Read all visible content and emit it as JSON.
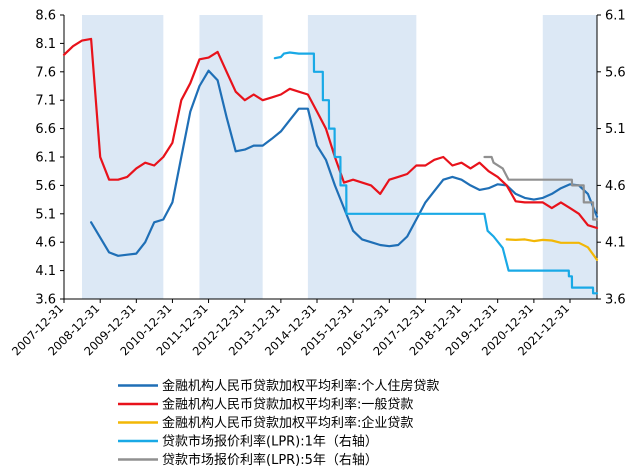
{
  "chart_data": {
    "type": "line",
    "title": "",
    "xlabel": "",
    "ylabel": "",
    "x_range": [
      "2007-12-31",
      "2022-09-30"
    ],
    "left_axis": {
      "min": 3.6,
      "max": 8.6,
      "ticks": [
        "8.6",
        "8.1",
        "7.6",
        "7.1",
        "6.6",
        "6.1",
        "5.6",
        "5.1",
        "4.6",
        "4.1",
        "3.6"
      ]
    },
    "right_axis": {
      "min": 3.6,
      "max": 6.1,
      "ticks": [
        "6.1",
        "5.6",
        "5.1",
        "4.6",
        "4.1",
        "3.6"
      ]
    },
    "x_ticks": [
      "2007-12-31",
      "2008-12-31",
      "2009-12-31",
      "2010-12-31",
      "2011-12-31",
      "2012-12-31",
      "2013-12-31",
      "2014-12-31",
      "2015-12-31",
      "2016-12-31",
      "2017-12-31",
      "2018-12-31",
      "2019-12-31",
      "2020-12-31",
      "2021-12-31"
    ],
    "shaded_periods": [
      [
        "2008-06-30",
        "2010-09-30"
      ],
      [
        "2011-09-30",
        "2013-06-30"
      ],
      [
        "2014-09-30",
        "2017-09-30"
      ],
      [
        "2021-03-31",
        "2022-09-30"
      ]
    ],
    "legend_position": "bottom",
    "series": [
      {
        "name": "金融机构人民币贷款加权平均利率:个人住房贷款",
        "axis": "left",
        "color": "#1f6fb6",
        "points": [
          [
            "2008-09-30",
            4.95
          ],
          [
            "2009-03-31",
            4.42
          ],
          [
            "2009-06-30",
            4.36
          ],
          [
            "2009-09-30",
            4.38
          ],
          [
            "2009-12-31",
            4.4
          ],
          [
            "2010-03-31",
            4.6
          ],
          [
            "2010-06-30",
            4.95
          ],
          [
            "2010-09-30",
            5.0
          ],
          [
            "2010-12-31",
            5.3
          ],
          [
            "2011-03-31",
            6.1
          ],
          [
            "2011-06-30",
            6.9
          ],
          [
            "2011-09-30",
            7.35
          ],
          [
            "2011-12-31",
            7.62
          ],
          [
            "2012-03-31",
            7.45
          ],
          [
            "2012-06-30",
            6.8
          ],
          [
            "2012-09-30",
            6.2
          ],
          [
            "2012-12-31",
            6.23
          ],
          [
            "2013-03-31",
            6.3
          ],
          [
            "2013-06-30",
            6.3
          ],
          [
            "2013-09-30",
            6.42
          ],
          [
            "2013-12-31",
            6.55
          ],
          [
            "2014-03-31",
            6.75
          ],
          [
            "2014-06-30",
            6.95
          ],
          [
            "2014-09-30",
            6.95
          ],
          [
            "2014-12-31",
            6.3
          ],
          [
            "2015-03-31",
            6.05
          ],
          [
            "2015-06-30",
            5.6
          ],
          [
            "2015-09-30",
            5.2
          ],
          [
            "2015-12-31",
            4.8
          ],
          [
            "2016-03-31",
            4.65
          ],
          [
            "2016-06-30",
            4.6
          ],
          [
            "2016-09-30",
            4.55
          ],
          [
            "2016-12-31",
            4.53
          ],
          [
            "2017-03-31",
            4.55
          ],
          [
            "2017-06-30",
            4.7
          ],
          [
            "2017-09-30",
            5.0
          ],
          [
            "2017-12-31",
            5.3
          ],
          [
            "2018-03-31",
            5.5
          ],
          [
            "2018-06-30",
            5.7
          ],
          [
            "2018-09-30",
            5.75
          ],
          [
            "2018-12-31",
            5.7
          ],
          [
            "2019-03-31",
            5.6
          ],
          [
            "2019-06-30",
            5.52
          ],
          [
            "2019-09-30",
            5.55
          ],
          [
            "2019-12-31",
            5.62
          ],
          [
            "2020-03-31",
            5.6
          ],
          [
            "2020-06-30",
            5.45
          ],
          [
            "2020-09-30",
            5.38
          ],
          [
            "2020-12-31",
            5.35
          ],
          [
            "2021-03-31",
            5.38
          ],
          [
            "2021-06-30",
            5.45
          ],
          [
            "2021-09-30",
            5.55
          ],
          [
            "2021-12-31",
            5.62
          ],
          [
            "2022-03-31",
            5.6
          ],
          [
            "2022-06-30",
            5.45
          ],
          [
            "2022-09-30",
            5.05
          ]
        ]
      },
      {
        "name": "金融机构人民币贷款加权平均利率:一般贷款",
        "axis": "left",
        "color": "#e8121b",
        "points": [
          [
            "2007-12-31",
            7.9
          ],
          [
            "2008-03-31",
            8.05
          ],
          [
            "2008-06-30",
            8.15
          ],
          [
            "2008-09-30",
            8.18
          ],
          [
            "2008-12-31",
            6.1
          ],
          [
            "2009-03-31",
            5.7
          ],
          [
            "2009-06-30",
            5.7
          ],
          [
            "2009-09-30",
            5.75
          ],
          [
            "2009-12-31",
            5.9
          ],
          [
            "2010-03-31",
            6.0
          ],
          [
            "2010-06-30",
            5.95
          ],
          [
            "2010-09-30",
            6.1
          ],
          [
            "2010-12-31",
            6.35
          ],
          [
            "2011-03-31",
            7.1
          ],
          [
            "2011-06-30",
            7.4
          ],
          [
            "2011-09-30",
            7.82
          ],
          [
            "2011-12-31",
            7.85
          ],
          [
            "2012-03-31",
            7.95
          ],
          [
            "2012-06-30",
            7.6
          ],
          [
            "2012-09-30",
            7.25
          ],
          [
            "2012-12-31",
            7.1
          ],
          [
            "2013-03-31",
            7.2
          ],
          [
            "2013-06-30",
            7.1
          ],
          [
            "2013-09-30",
            7.15
          ],
          [
            "2013-12-31",
            7.2
          ],
          [
            "2014-03-31",
            7.3
          ],
          [
            "2014-06-30",
            7.25
          ],
          [
            "2014-09-30",
            7.2
          ],
          [
            "2014-12-31",
            6.9
          ],
          [
            "2015-03-31",
            6.6
          ],
          [
            "2015-06-30",
            6.1
          ],
          [
            "2015-09-30",
            5.65
          ],
          [
            "2015-12-31",
            5.7
          ],
          [
            "2016-03-31",
            5.65
          ],
          [
            "2016-06-30",
            5.6
          ],
          [
            "2016-09-30",
            5.45
          ],
          [
            "2016-12-31",
            5.7
          ],
          [
            "2017-03-31",
            5.75
          ],
          [
            "2017-06-30",
            5.8
          ],
          [
            "2017-09-30",
            5.95
          ],
          [
            "2017-12-31",
            5.95
          ],
          [
            "2018-03-31",
            6.05
          ],
          [
            "2018-06-30",
            6.1
          ],
          [
            "2018-09-30",
            5.95
          ],
          [
            "2018-12-31",
            6.0
          ],
          [
            "2019-03-31",
            5.9
          ],
          [
            "2019-06-30",
            6.0
          ],
          [
            "2019-09-30",
            5.85
          ],
          [
            "2019-12-31",
            5.75
          ],
          [
            "2020-03-31",
            5.6
          ],
          [
            "2020-06-30",
            5.32
          ],
          [
            "2020-09-30",
            5.3
          ],
          [
            "2020-12-31",
            5.3
          ],
          [
            "2021-03-31",
            5.3
          ],
          [
            "2021-06-30",
            5.2
          ],
          [
            "2021-09-30",
            5.3
          ],
          [
            "2021-12-31",
            5.2
          ],
          [
            "2022-03-31",
            5.1
          ],
          [
            "2022-06-30",
            4.9
          ],
          [
            "2022-09-30",
            4.85
          ]
        ]
      },
      {
        "name": "金融机构人民币贷款加权平均利率:企业贷款",
        "axis": "left",
        "color": "#f2b705",
        "points": [
          [
            "2020-03-31",
            4.65
          ],
          [
            "2020-06-30",
            4.64
          ],
          [
            "2020-09-30",
            4.65
          ],
          [
            "2020-12-31",
            4.62
          ],
          [
            "2021-03-31",
            4.64
          ],
          [
            "2021-06-30",
            4.63
          ],
          [
            "2021-09-30",
            4.59
          ],
          [
            "2021-12-31",
            4.59
          ],
          [
            "2022-03-31",
            4.59
          ],
          [
            "2022-06-30",
            4.51
          ],
          [
            "2022-09-30",
            4.29
          ]
        ]
      },
      {
        "name": "贷款市场报价利率(LPR):1年（右轴）",
        "axis": "right",
        "color": "#19a9e6",
        "points": [
          [
            "2013-10-31",
            5.72
          ],
          [
            "2013-12-31",
            5.73
          ],
          [
            "2014-01-31",
            5.76
          ],
          [
            "2014-03-31",
            5.77
          ],
          [
            "2014-06-30",
            5.76
          ],
          [
            "2014-09-30",
            5.76
          ],
          [
            "2014-11-30",
            5.76
          ],
          [
            "2014-12-01",
            5.6
          ],
          [
            "2015-02-28",
            5.6
          ],
          [
            "2015-03-01",
            5.35
          ],
          [
            "2015-04-30",
            5.35
          ],
          [
            "2015-05-01",
            5.1
          ],
          [
            "2015-06-27",
            5.1
          ],
          [
            "2015-06-28",
            4.85
          ],
          [
            "2015-08-25",
            4.85
          ],
          [
            "2015-08-26",
            4.6
          ],
          [
            "2015-10-23",
            4.6
          ],
          [
            "2015-10-24",
            4.35
          ],
          [
            "2019-08-19",
            4.35
          ],
          [
            "2019-09-20",
            4.2
          ],
          [
            "2019-11-20",
            4.15
          ],
          [
            "2020-02-20",
            4.05
          ],
          [
            "2020-04-20",
            3.85
          ],
          [
            "2021-12-19",
            3.85
          ],
          [
            "2021-12-20",
            3.8
          ],
          [
            "2022-01-19",
            3.8
          ],
          [
            "2022-01-20",
            3.7
          ],
          [
            "2022-08-21",
            3.7
          ],
          [
            "2022-08-22",
            3.65
          ],
          [
            "2022-09-30",
            3.65
          ]
        ]
      },
      {
        "name": "贷款市场报价利率(LPR):5年（右轴）",
        "axis": "right",
        "color": "#909090",
        "points": [
          [
            "2019-08-20",
            4.85
          ],
          [
            "2019-10-31",
            4.85
          ],
          [
            "2019-11-20",
            4.8
          ],
          [
            "2020-02-20",
            4.75
          ],
          [
            "2020-04-20",
            4.65
          ],
          [
            "2022-01-19",
            4.65
          ],
          [
            "2022-01-20",
            4.6
          ],
          [
            "2022-05-19",
            4.6
          ],
          [
            "2022-05-20",
            4.45
          ],
          [
            "2022-08-21",
            4.45
          ],
          [
            "2022-08-22",
            4.3
          ],
          [
            "2022-09-30",
            4.3
          ]
        ]
      }
    ]
  }
}
